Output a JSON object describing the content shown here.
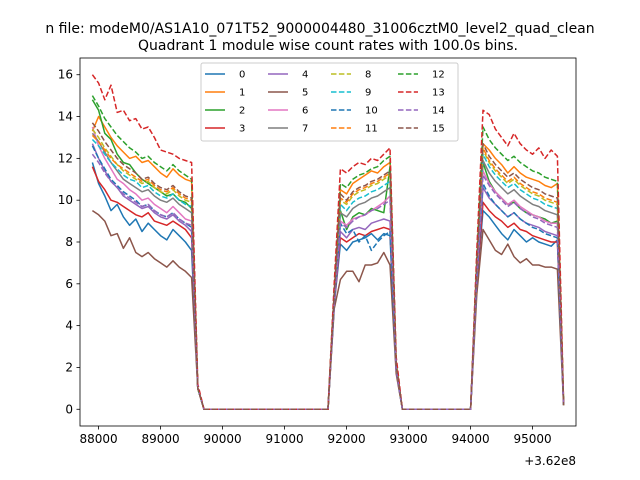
{
  "chart_data": {
    "type": "line",
    "suptitle": "n file: modeM0/AS1A10_071T52_9000004480_31006cztM0_level2_quad_clean",
    "title": "Quadrant 1 module wise count rates with 100.0s bins.",
    "xlabel": "",
    "ylabel": "",
    "x_offset_label": "+3.62e8",
    "xlim": [
      87700,
      95700
    ],
    "ylim": [
      -0.8,
      16.8
    ],
    "xticks": [
      88000,
      89000,
      90000,
      91000,
      92000,
      93000,
      94000,
      95000
    ],
    "yticks": [
      0,
      2,
      4,
      6,
      8,
      10,
      12,
      14,
      16
    ],
    "grid": false,
    "legend_position": "top-center",
    "legend_columns": 4,
    "x": [
      87900,
      88000,
      88100,
      88200,
      88300,
      88400,
      88500,
      88600,
      88700,
      88800,
      88900,
      89000,
      89100,
      89200,
      89300,
      89400,
      89500,
      89600,
      89700,
      91700,
      91800,
      91900,
      92000,
      92100,
      92200,
      92300,
      92400,
      92500,
      92600,
      92700,
      92800,
      92900,
      94000,
      94100,
      94200,
      94300,
      94400,
      94500,
      94600,
      94700,
      94800,
      94900,
      95000,
      95100,
      95200,
      95300,
      95400,
      95500
    ],
    "series": [
      {
        "name": "0",
        "color": "#1f77b4",
        "dash": "solid",
        "values": [
          11.8,
          10.8,
          10.2,
          9.5,
          9.8,
          9.2,
          8.8,
          9.1,
          8.5,
          8.9,
          8.6,
          8.3,
          8.1,
          8.6,
          8.3,
          8.0,
          7.6,
          1.0,
          0,
          0,
          5.0,
          7.9,
          7.6,
          8.0,
          8.1,
          8.2,
          8.4,
          8.1,
          8.4,
          8.3,
          1.8,
          0,
          0,
          6.0,
          9.5,
          9.2,
          8.8,
          8.4,
          8.1,
          8.6,
          8.3,
          8.0,
          8.2,
          8.0,
          7.9,
          7.8,
          8.1,
          0.2
        ]
      },
      {
        "name": "1",
        "color": "#ff7f0e",
        "dash": "solid",
        "values": [
          13.3,
          14.0,
          13.5,
          13.0,
          12.6,
          12.3,
          12.0,
          12.1,
          11.8,
          11.9,
          11.6,
          11.3,
          11.1,
          11.5,
          11.2,
          11.0,
          10.9,
          1.0,
          0,
          0,
          5.5,
          10.5,
          10.3,
          10.8,
          11.0,
          11.2,
          11.4,
          11.3,
          11.6,
          11.8,
          2.2,
          0,
          0,
          7.0,
          12.7,
          12.4,
          12.0,
          11.7,
          11.3,
          11.6,
          11.3,
          11.1,
          11.0,
          10.9,
          10.7,
          10.6,
          10.8,
          0.3
        ]
      },
      {
        "name": "2",
        "color": "#2ca02c",
        "dash": "solid",
        "values": [
          14.8,
          14.3,
          13.2,
          12.9,
          12.2,
          11.8,
          11.7,
          11.3,
          11.0,
          10.8,
          10.6,
          10.4,
          10.2,
          10.3,
          10.0,
          9.9,
          9.6,
          1.0,
          0,
          0,
          5.3,
          9.5,
          8.6,
          9.2,
          9.4,
          9.3,
          9.6,
          9.5,
          9.4,
          11.6,
          2.0,
          0,
          0,
          6.5,
          11.8,
          10.9,
          10.4,
          10.1,
          9.8,
          9.9,
          9.6,
          9.4,
          9.3,
          9.2,
          9.1,
          8.9,
          9.0,
          0.3
        ]
      },
      {
        "name": "3",
        "color": "#d62728",
        "dash": "solid",
        "values": [
          11.6,
          10.9,
          10.5,
          10.0,
          9.9,
          9.7,
          9.5,
          9.3,
          9.2,
          9.4,
          9.0,
          8.9,
          8.8,
          9.0,
          8.8,
          8.6,
          8.2,
          1.0,
          0,
          0,
          5.0,
          8.2,
          8.0,
          8.2,
          8.4,
          8.3,
          8.5,
          8.6,
          8.7,
          8.6,
          1.9,
          0,
          0,
          6.0,
          9.9,
          9.5,
          9.2,
          9.0,
          8.7,
          8.9,
          8.6,
          8.5,
          8.3,
          8.2,
          8.1,
          8.0,
          8.0,
          0.2
        ]
      },
      {
        "name": "4",
        "color": "#9467bd",
        "dash": "solid",
        "values": [
          12.7,
          12.0,
          11.4,
          10.9,
          10.6,
          10.2,
          10.0,
          9.8,
          9.6,
          9.7,
          9.4,
          9.2,
          9.1,
          9.3,
          9.0,
          8.8,
          8.5,
          1.0,
          0,
          0,
          5.0,
          8.5,
          8.2,
          8.6,
          8.7,
          8.6,
          8.9,
          9.0,
          9.1,
          9.0,
          1.9,
          0,
          0,
          6.2,
          10.6,
          10.1,
          9.8,
          9.5,
          9.2,
          9.4,
          9.1,
          8.9,
          8.8,
          8.7,
          8.5,
          8.4,
          8.3,
          0.2
        ]
      },
      {
        "name": "5",
        "color": "#8c564b",
        "dash": "solid",
        "values": [
          9.5,
          9.3,
          9.0,
          8.3,
          8.4,
          7.7,
          8.2,
          7.5,
          7.3,
          7.5,
          7.2,
          7.0,
          6.8,
          7.1,
          6.8,
          6.6,
          6.3,
          1.0,
          0,
          0,
          4.8,
          6.2,
          6.6,
          6.6,
          6.1,
          6.9,
          6.9,
          7.0,
          7.5,
          6.9,
          1.7,
          0,
          0,
          5.5,
          8.6,
          8.1,
          7.6,
          7.4,
          7.9,
          7.3,
          7.0,
          7.2,
          6.9,
          6.9,
          6.8,
          6.8,
          6.7,
          0.2
        ]
      },
      {
        "name": "6",
        "color": "#e377c2",
        "dash": "solid",
        "values": [
          13.5,
          12.6,
          12.0,
          11.5,
          11.0,
          10.8,
          10.5,
          10.3,
          10.0,
          10.1,
          9.8,
          9.6,
          9.4,
          9.7,
          9.4,
          9.1,
          9.0,
          1.0,
          0,
          0,
          5.2,
          9.0,
          8.8,
          9.1,
          9.2,
          9.3,
          9.5,
          9.7,
          9.9,
          10.2,
          2.0,
          0,
          0,
          6.4,
          11.4,
          10.8,
          10.4,
          10.1,
          9.8,
          10.0,
          9.7,
          9.5,
          9.3,
          9.2,
          9.0,
          8.9,
          8.9,
          0.2
        ]
      },
      {
        "name": "7",
        "color": "#7f7f7f",
        "dash": "solid",
        "values": [
          13.2,
          12.8,
          12.3,
          11.8,
          11.4,
          11.0,
          10.8,
          10.6,
          10.4,
          10.5,
          10.2,
          10.0,
          9.9,
          10.1,
          9.8,
          9.6,
          9.4,
          1.0,
          0,
          0,
          5.3,
          9.4,
          9.2,
          9.6,
          9.8,
          9.9,
          10.1,
          10.2,
          10.4,
          10.6,
          2.0,
          0,
          0,
          6.6,
          11.9,
          11.3,
          10.9,
          10.6,
          10.3,
          10.5,
          10.2,
          10.0,
          9.8,
          9.7,
          9.5,
          9.4,
          9.3,
          0.2
        ]
      },
      {
        "name": "8",
        "color": "#bcbd22",
        "dash": "dashed",
        "values": [
          13.4,
          13.0,
          12.5,
          12.1,
          11.7,
          11.4,
          11.2,
          11.0,
          10.8,
          10.9,
          10.6,
          10.4,
          10.3,
          10.5,
          10.2,
          10.0,
          9.9,
          1.0,
          0,
          0,
          5.4,
          10.0,
          9.8,
          10.2,
          10.4,
          10.5,
          10.7,
          10.8,
          11.0,
          11.2,
          2.1,
          0,
          0,
          6.8,
          12.4,
          11.8,
          11.4,
          11.1,
          10.8,
          11.0,
          10.7,
          10.5,
          10.3,
          10.2,
          10.0,
          9.9,
          9.8,
          0.2
        ]
      },
      {
        "name": "9",
        "color": "#17becf",
        "dash": "dashed",
        "values": [
          12.9,
          12.6,
          12.2,
          11.8,
          11.5,
          11.2,
          11.0,
          10.9,
          10.6,
          10.7,
          10.4,
          10.2,
          10.1,
          10.3,
          10.0,
          9.8,
          9.7,
          1.0,
          0,
          0,
          5.3,
          9.8,
          9.5,
          9.9,
          10.1,
          10.2,
          10.4,
          10.5,
          10.7,
          10.9,
          2.0,
          0,
          0,
          6.7,
          12.2,
          11.6,
          11.2,
          10.9,
          10.6,
          10.8,
          10.5,
          10.3,
          10.1,
          10.0,
          9.8,
          9.7,
          9.6,
          0.2
        ]
      },
      {
        "name": "10",
        "color": "#1f77b4",
        "dash": "dashed",
        "values": [
          12.6,
          12.0,
          11.5,
          11.0,
          10.7,
          10.4,
          10.2,
          10.0,
          9.7,
          9.8,
          9.5,
          9.3,
          9.2,
          9.4,
          9.1,
          8.9,
          8.7,
          1.0,
          0,
          0,
          5.0,
          8.9,
          8.4,
          8.6,
          8.0,
          8.3,
          7.6,
          8.0,
          8.3,
          8.5,
          1.9,
          0,
          0,
          6.2,
          10.8,
          10.2,
          9.8,
          9.5,
          9.2,
          9.4,
          9.1,
          8.9,
          8.7,
          8.6,
          8.4,
          8.3,
          8.2,
          0.2
        ]
      },
      {
        "name": "11",
        "color": "#ff7f0e",
        "dash": "dashed",
        "values": [
          13.1,
          12.8,
          12.4,
          12.0,
          11.7,
          11.5,
          11.3,
          11.1,
          10.9,
          11.0,
          10.7,
          10.5,
          10.4,
          10.6,
          10.3,
          10.1,
          10.0,
          1.0,
          0,
          0,
          5.4,
          10.1,
          9.9,
          10.3,
          10.5,
          10.6,
          10.8,
          10.9,
          11.1,
          11.3,
          2.1,
          0,
          0,
          6.8,
          12.5,
          11.9,
          11.5,
          11.2,
          10.9,
          11.1,
          10.8,
          10.6,
          10.4,
          10.3,
          10.1,
          10.0,
          9.9,
          0.2
        ]
      },
      {
        "name": "12",
        "color": "#2ca02c",
        "dash": "dashed",
        "values": [
          15.0,
          14.5,
          13.9,
          13.5,
          13.1,
          12.8,
          12.5,
          12.3,
          12.0,
          12.1,
          11.8,
          11.6,
          11.4,
          11.7,
          11.4,
          11.2,
          11.0,
          1.0,
          0,
          0,
          5.7,
          10.8,
          10.6,
          11.0,
          11.2,
          11.3,
          11.5,
          11.6,
          11.9,
          12.1,
          2.2,
          0,
          0,
          7.2,
          13.5,
          12.9,
          12.5,
          12.2,
          11.9,
          12.1,
          11.8,
          11.6,
          11.4,
          11.3,
          11.1,
          11.0,
          10.9,
          0.3
        ]
      },
      {
        "name": "13",
        "color": "#d62728",
        "dash": "dashed",
        "values": [
          16.0,
          15.6,
          14.8,
          15.5,
          14.2,
          14.3,
          13.8,
          13.9,
          13.4,
          13.5,
          13.0,
          12.4,
          12.3,
          12.2,
          12.0,
          11.9,
          11.8,
          1.2,
          0,
          0,
          6.0,
          11.5,
          11.3,
          11.6,
          11.8,
          11.7,
          12.0,
          11.9,
          12.2,
          12.5,
          2.5,
          0,
          0,
          7.6,
          14.3,
          14.1,
          13.4,
          13.0,
          12.6,
          13.2,
          12.7,
          12.4,
          12.2,
          12.5,
          12.0,
          12.4,
          12.1,
          0.3
        ]
      },
      {
        "name": "14",
        "color": "#9467bd",
        "dash": "dashed",
        "values": [
          12.2,
          11.8,
          11.3,
          10.9,
          10.6,
          10.3,
          10.1,
          9.9,
          9.7,
          9.8,
          9.5,
          9.3,
          9.2,
          9.4,
          9.1,
          8.9,
          8.8,
          1.0,
          0,
          0,
          5.1,
          8.9,
          8.7,
          9.0,
          9.2,
          9.3,
          9.5,
          9.6,
          9.8,
          10.0,
          1.9,
          0,
          0,
          6.4,
          11.2,
          10.7,
          10.3,
          10.0,
          9.7,
          9.9,
          9.6,
          9.4,
          9.2,
          9.1,
          8.9,
          8.8,
          8.7,
          0.2
        ]
      },
      {
        "name": "15",
        "color": "#8c564b",
        "dash": "dashed",
        "values": [
          13.7,
          13.3,
          12.8,
          12.4,
          12.0,
          11.7,
          11.5,
          11.3,
          11.0,
          11.1,
          10.8,
          10.6,
          10.5,
          10.7,
          10.4,
          10.2,
          10.1,
          1.0,
          0,
          0,
          5.5,
          10.3,
          10.0,
          10.4,
          10.6,
          10.7,
          10.9,
          11.0,
          11.2,
          11.4,
          2.1,
          0,
          0,
          6.9,
          12.7,
          12.1,
          11.7,
          11.4,
          11.1,
          11.3,
          11.0,
          10.8,
          10.6,
          10.5,
          10.3,
          10.2,
          10.1,
          0.2
        ]
      }
    ]
  }
}
